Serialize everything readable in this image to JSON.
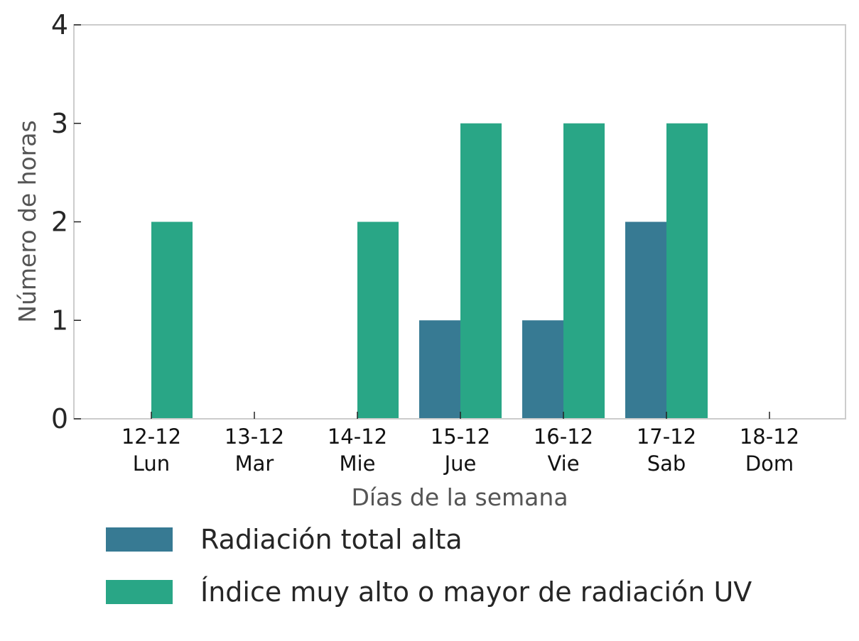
{
  "chart_data": {
    "type": "bar",
    "categories": [
      [
        "12-12",
        "Lun"
      ],
      [
        "13-12",
        "Mar"
      ],
      [
        "14-12",
        "Mie"
      ],
      [
        "15-12",
        "Jue"
      ],
      [
        "16-12",
        "Vie"
      ],
      [
        "17-12",
        "Sab"
      ],
      [
        "18-12",
        "Dom"
      ]
    ],
    "series": [
      {
        "name": "Radiación total alta",
        "color": "#377a93",
        "values": [
          0,
          0,
          0,
          1,
          1,
          2,
          0
        ]
      },
      {
        "name": "Índice muy alto o mayor de radiación UV",
        "color": "#29a686",
        "values": [
          2,
          0,
          2,
          3,
          3,
          3,
          0
        ]
      }
    ],
    "xlabel": "Días de la semana",
    "ylabel": "Número de horas",
    "ylim": [
      0,
      4
    ],
    "yticks": [
      "0",
      "1",
      "2",
      "3",
      "4"
    ],
    "grid": false,
    "legend_position": "bottom"
  }
}
